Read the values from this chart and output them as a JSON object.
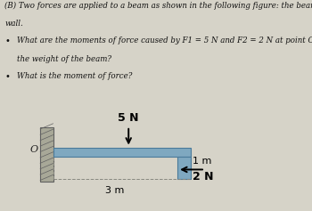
{
  "title_line1": "(B) Two forces are applied to a beam as shown in the following figure: the beam is supported by the",
  "title_line2": "wall.",
  "bullet1_line1": "What are the moments of force caused by F1 = 5 N and F2 = 2 N at point O without considering",
  "bullet1_line2": "the weight of the beam?",
  "bullet2": "What is the moment of force?",
  "page_bg": "#d6d3c8",
  "diagram_bg": "#c8c5b8",
  "beam_color": "#7fa8c0",
  "beam_edge": "#4a7a9a",
  "wall_face": "#a8a898",
  "wall_edge": "#606060",
  "hatch_color": "#606060",
  "F1_label": "5 N",
  "F2_label": "2 N",
  "dist1_label": "1 m",
  "dist2_label": "3 m",
  "O_label": "O"
}
